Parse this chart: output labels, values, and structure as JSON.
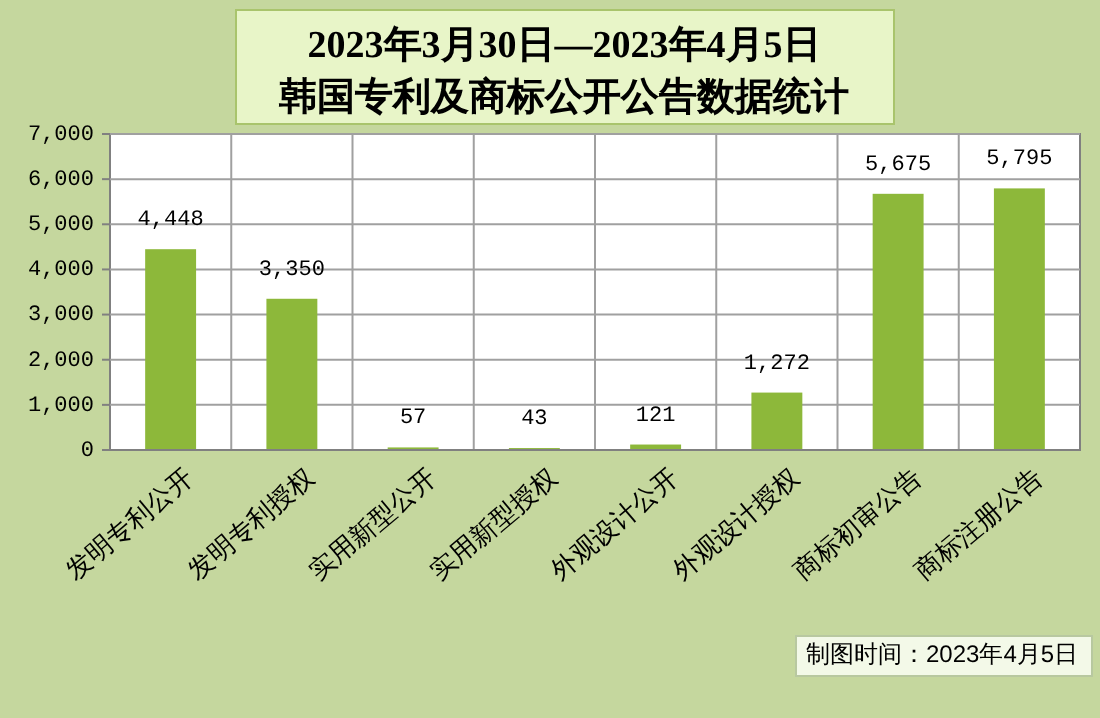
{
  "chart_data": {
    "type": "bar",
    "title": "2023年3月30日—2023年4月5日",
    "subtitle": "韩国专利及商标公开公告数据统计",
    "categories": [
      "发明专利公开",
      "发明专利授权",
      "实用新型公开",
      "实用新型授权",
      "外观设计公开",
      "外观设计授权",
      "商标初审公告",
      "商标注册公告"
    ],
    "values": [
      4448,
      3350,
      57,
      43,
      121,
      1272,
      5675,
      5795
    ],
    "value_labels": [
      "4,448",
      "3,350",
      "57",
      "43",
      "121",
      "1,272",
      "5,675",
      "5,795"
    ],
    "color": "#8db83a",
    "ylim": [
      0,
      7000
    ],
    "yticks": [
      0,
      {
        "value": 1000,
        "label": "1,000"
      },
      {
        "value": 2000,
        "label": "2,000"
      },
      {
        "value": 3000,
        "label": "3,000"
      },
      {
        "value": 4000,
        "label": "4,000"
      },
      {
        "value": 5000,
        "label": "5,000"
      },
      {
        "value": 6000,
        "label": "6,000"
      },
      {
        "value": 7000,
        "label": "7,000"
      }
    ],
    "grid": true,
    "annotations": [
      "制图时间：2023年4月5日"
    ]
  }
}
